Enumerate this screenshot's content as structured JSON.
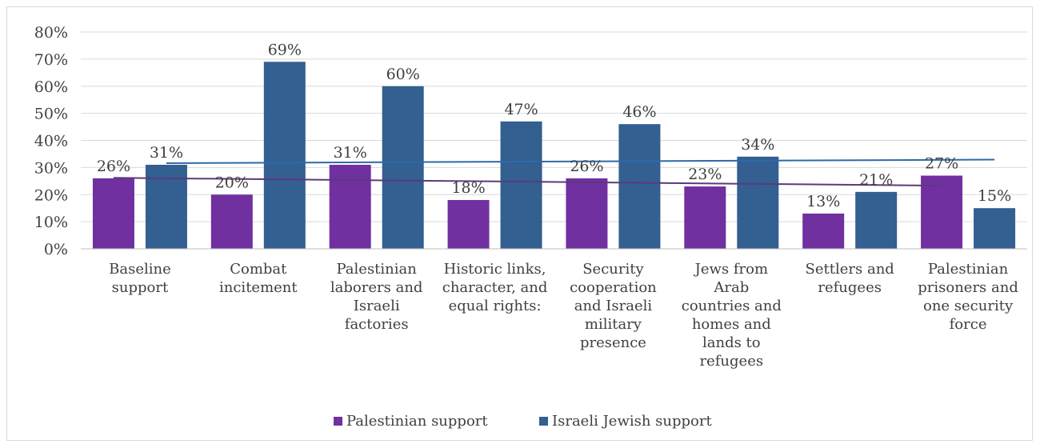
{
  "chart_data": {
    "type": "bar",
    "title": "",
    "xlabel": "",
    "ylabel": "",
    "ylim": [
      0,
      80
    ],
    "yticks": [
      0,
      10,
      20,
      30,
      40,
      50,
      60,
      70,
      80
    ],
    "ytick_labels": [
      "0%",
      "10%",
      "20%",
      "30%",
      "40%",
      "50%",
      "60%",
      "70%",
      "80%"
    ],
    "grid": true,
    "legend_position": "bottom",
    "categories": [
      [
        "Baseline",
        "support"
      ],
      [
        "Combat",
        "incitement"
      ],
      [
        "Palestinian",
        "laborers and",
        "Israeli",
        "factories"
      ],
      [
        "Historic links,",
        "character, and",
        "equal rights:"
      ],
      [
        "Security",
        "cooperation",
        "and Israeli",
        "military",
        "presence"
      ],
      [
        "Jews from",
        "Arab",
        "countries and",
        "homes and",
        "lands to",
        "refugees"
      ],
      [
        "Settlers and",
        "refugees"
      ],
      [
        "Palestinian",
        "prisoners and",
        "one security",
        "force"
      ]
    ],
    "series": [
      {
        "name": "Palestinian support",
        "color": "#7030a0",
        "values": [
          26,
          20,
          31,
          18,
          26,
          23,
          13,
          27
        ],
        "labels": [
          "26%",
          "20%",
          "31%",
          "18%",
          "26%",
          "23%",
          "13%",
          "27%"
        ],
        "trendline": {
          "color": "#5b3a7a",
          "start": 26.2,
          "end": 23.3
        }
      },
      {
        "name": "Israeli Jewish support",
        "color": "#335f91",
        "values": [
          31,
          69,
          60,
          47,
          46,
          34,
          21,
          15
        ],
        "labels": [
          "31%",
          "69%",
          "60%",
          "47%",
          "46%",
          "34%",
          "21%",
          "15%"
        ],
        "trendline": {
          "color": "#2e6aa6",
          "start": 31.6,
          "end": 32.9
        }
      }
    ]
  }
}
